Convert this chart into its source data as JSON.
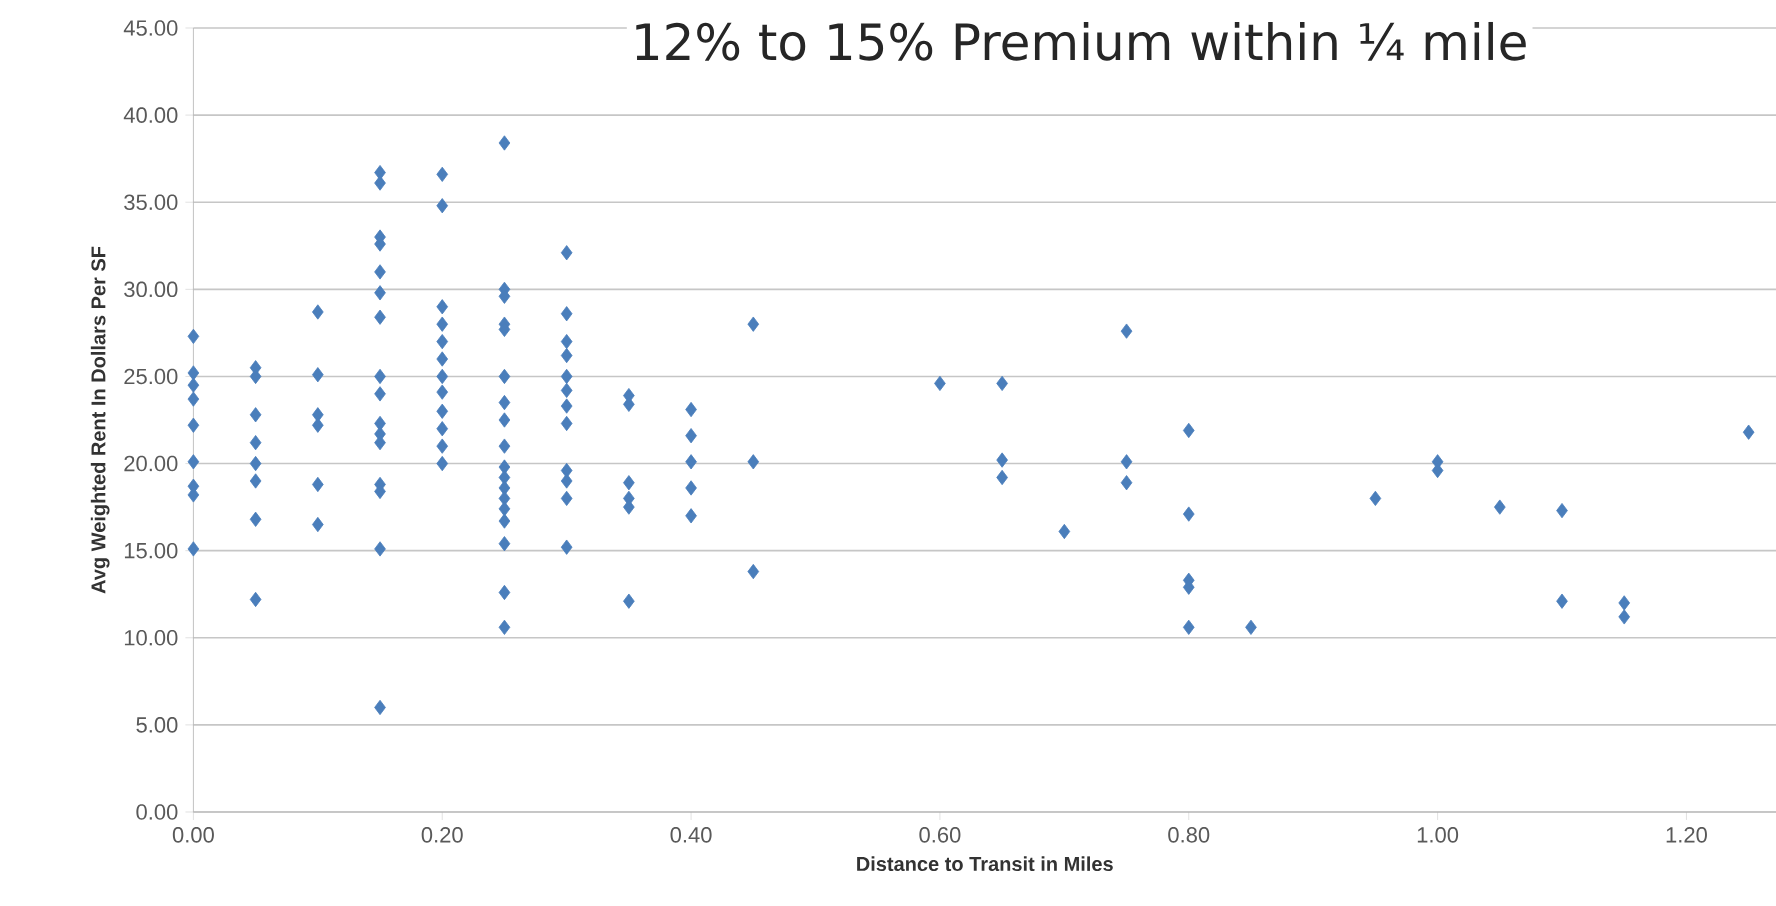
{
  "chart_data": {
    "type": "scatter",
    "title": "12% to 15% Premium within ¼ mile",
    "xlabel": "Distance to Transit in Miles",
    "ylabel": "Avg Weighted Rent In Dollars Per SF",
    "x": [
      0,
      0,
      0,
      0,
      0,
      0,
      0,
      0,
      0,
      0.05,
      0.05,
      0.05,
      0.05,
      0.05,
      0.05,
      0.05,
      0.05,
      0.1,
      0.1,
      0.1,
      0.1,
      0.1,
      0.1,
      0.15,
      0.15,
      0.15,
      0.15,
      0.15,
      0.15,
      0.15,
      0.15,
      0.15,
      0.15,
      0.15,
      0.15,
      0.15,
      0.15,
      0.15,
      0.15,
      0.2,
      0.2,
      0.2,
      0.2,
      0.2,
      0.2,
      0.2,
      0.2,
      0.2,
      0.2,
      0.2,
      0.2,
      0.25,
      0.25,
      0.25,
      0.25,
      0.25,
      0.25,
      0.25,
      0.25,
      0.25,
      0.25,
      0.25,
      0.25,
      0.25,
      0.25,
      0.25,
      0.25,
      0.25,
      0.25,
      0.3,
      0.3,
      0.3,
      0.3,
      0.3,
      0.3,
      0.3,
      0.3,
      0.3,
      0.3,
      0.3,
      0.3,
      0.35,
      0.35,
      0.35,
      0.35,
      0.35,
      0.35,
      0.4,
      0.4,
      0.4,
      0.4,
      0.4,
      0.45,
      0.45,
      0.45,
      0.6,
      0.65,
      0.65,
      0.65,
      0.7,
      0.75,
      0.75,
      0.75,
      0.8,
      0.8,
      0.8,
      0.8,
      0.8,
      0.85,
      0.95,
      1.0,
      1.0,
      1.05,
      1.1,
      1.1,
      1.15,
      1.15,
      1.25
    ],
    "values": [
      27.3,
      25.2,
      24.5,
      23.7,
      22.2,
      20.1,
      18.7,
      18.2,
      15.1,
      25.5,
      25.0,
      22.8,
      21.2,
      20.0,
      19.0,
      16.8,
      12.2,
      28.7,
      25.1,
      22.8,
      22.2,
      18.8,
      16.5,
      36.7,
      36.1,
      33.0,
      32.6,
      31.0,
      29.8,
      28.4,
      25.0,
      24.0,
      22.3,
      21.7,
      21.2,
      18.8,
      18.4,
      15.1,
      6.0,
      36.6,
      34.8,
      29.0,
      28.0,
      27.0,
      26.0,
      25.0,
      24.1,
      23.0,
      22.0,
      21.0,
      20.0,
      38.4,
      30.0,
      29.6,
      28.0,
      27.7,
      25.0,
      23.5,
      22.5,
      21.0,
      19.8,
      19.2,
      18.6,
      18.0,
      17.4,
      16.7,
      15.4,
      12.6,
      10.6,
      32.1,
      28.6,
      27.0,
      26.2,
      25.0,
      24.2,
      23.3,
      22.3,
      19.6,
      19.0,
      18.0,
      15.2,
      23.9,
      23.4,
      18.9,
      18.0,
      17.5,
      12.1,
      23.1,
      21.6,
      20.1,
      18.6,
      17.0,
      28.0,
      20.1,
      13.8,
      24.6,
      24.6,
      20.2,
      19.2,
      16.1,
      27.6,
      20.1,
      18.9,
      21.9,
      17.1,
      13.3,
      12.9,
      10.6,
      10.6,
      18.0,
      20.1,
      19.6,
      17.5,
      17.3,
      12.1,
      12.0,
      11.2,
      21.8
    ],
    "color": "#4a7ebb",
    "marker": "diamond",
    "grid": "y",
    "xlim": [
      0,
      1.272
    ],
    "ylim": [
      0,
      45
    ],
    "xticks": [
      {
        "value": 0,
        "label": "0.00"
      },
      {
        "value": 0.2,
        "label": "0.20"
      },
      {
        "value": 0.4,
        "label": "0.40"
      },
      {
        "value": 0.6,
        "label": "0.60"
      },
      {
        "value": 0.8,
        "label": "0.80"
      },
      {
        "value": 1.0,
        "label": "1.00"
      },
      {
        "value": 1.2,
        "label": "1.20"
      }
    ],
    "yticks": [
      {
        "value": 0,
        "label": "0.00"
      },
      {
        "value": 5,
        "label": "5.00"
      },
      {
        "value": 10,
        "label": "10.00"
      },
      {
        "value": 15,
        "label": "15.00"
      },
      {
        "value": 20,
        "label": "20.00"
      },
      {
        "value": 25,
        "label": "25.00"
      },
      {
        "value": 30,
        "label": "30.00"
      },
      {
        "value": 35,
        "label": "35.00"
      },
      {
        "value": 40,
        "label": "40.00"
      },
      {
        "value": 45,
        "label": "45.00"
      }
    ]
  }
}
